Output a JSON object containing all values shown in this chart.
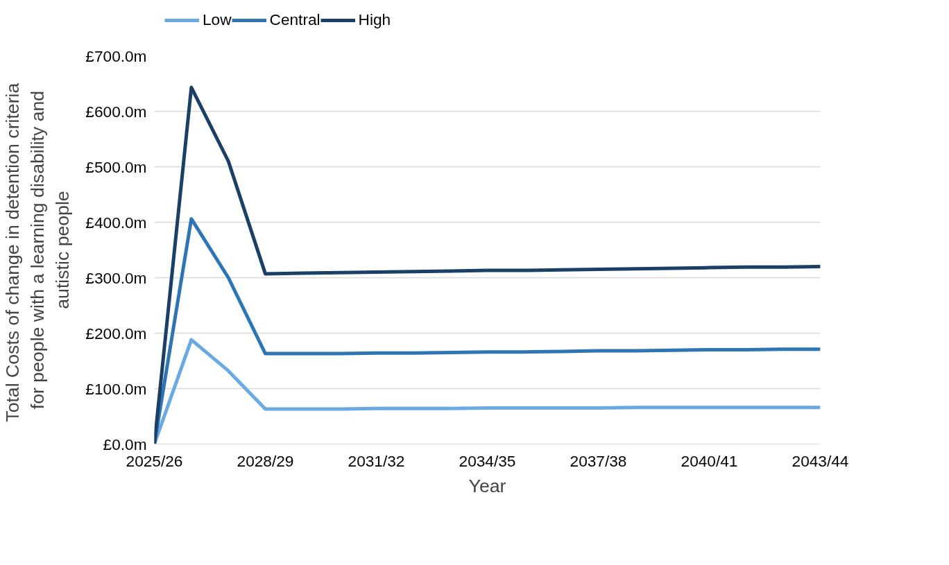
{
  "chart_data": {
    "type": "line",
    "xlabel": "Year",
    "ylabel": "Total Costs of change  in detention criteria\nfor people with a learning disability and\nautistic people",
    "categories": [
      "2025/26",
      null,
      null,
      "2028/29",
      null,
      null,
      "2031/32",
      null,
      null,
      "2034/35",
      null,
      null,
      "2037/38",
      null,
      null,
      "2040/41",
      null,
      null,
      "2043/44"
    ],
    "series": [
      {
        "name": "Low",
        "color": "#6aaae4",
        "values": [
          0,
          188,
          132,
          63,
          63,
          63,
          64,
          64,
          64,
          65,
          65,
          65,
          65,
          66,
          66,
          66,
          66,
          66,
          66
        ]
      },
      {
        "name": "Central",
        "color": "#2e75b6",
        "values": [
          0,
          406,
          300,
          163,
          163,
          163,
          164,
          164,
          165,
          166,
          166,
          167,
          168,
          168,
          169,
          170,
          170,
          171,
          171
        ]
      },
      {
        "name": "High",
        "color": "#1b3f66",
        "values": [
          0,
          643,
          510,
          307,
          308,
          309,
          310,
          311,
          312,
          313,
          313,
          314,
          315,
          316,
          317,
          318,
          319,
          319,
          320
        ]
      }
    ],
    "ylim": [
      0,
      700
    ],
    "yticks": [
      {
        "value": 0,
        "label": "£0.0m"
      },
      {
        "value": 100,
        "label": "£100.0m"
      },
      {
        "value": 200,
        "label": "£200.0m"
      },
      {
        "value": 300,
        "label": "£300.0m"
      },
      {
        "value": 400,
        "label": "£400.0m"
      },
      {
        "value": 500,
        "label": "£500.0m"
      },
      {
        "value": 600,
        "label": "£600.0m"
      },
      {
        "value": 700,
        "label": "£700.0m"
      }
    ],
    "grid": "y",
    "legend": "top left",
    "marker": "none",
    "line_style": "solid"
  }
}
